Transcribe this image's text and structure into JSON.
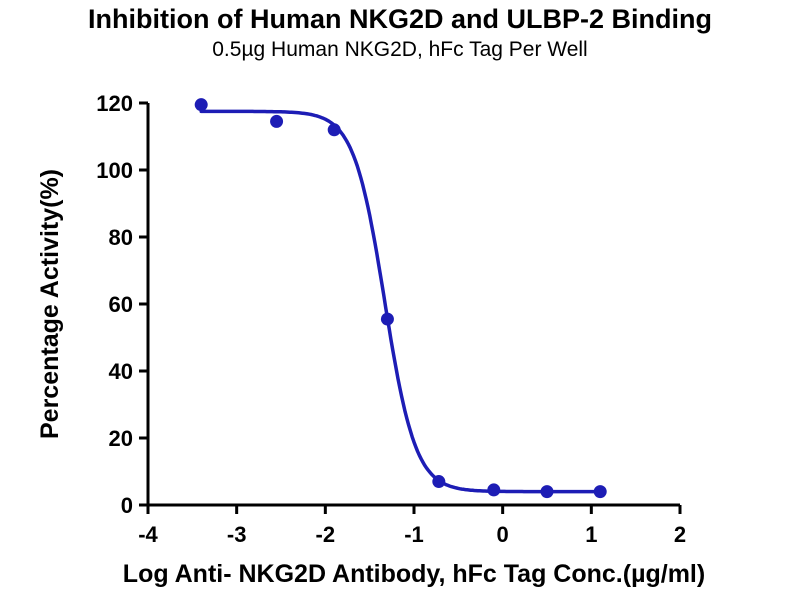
{
  "chart_data": {
    "type": "scatter",
    "title": "Inhibition of Human NKG2D and ULBP-2 Binding",
    "subtitle": "0.5µg Human NKG2D, hFc Tag Per Well",
    "xlabel": "Log Anti- NKG2D Antibody, hFc Tag Conc.(µg/ml)",
    "ylabel": "Percentage Activity(%)",
    "xlim": [
      -4,
      2
    ],
    "ylim": [
      0,
      120
    ],
    "x_ticks": [
      -4,
      -3,
      -2,
      -1,
      0,
      1,
      2
    ],
    "y_ticks": [
      0,
      20,
      40,
      60,
      80,
      100,
      120
    ],
    "grid": false,
    "legend": "none",
    "series_color": "#1d1db5",
    "axis_color": "#000000",
    "points": [
      {
        "x": -3.4,
        "y": 119.5
      },
      {
        "x": -2.55,
        "y": 114.5
      },
      {
        "x": -1.9,
        "y": 112
      },
      {
        "x": -1.3,
        "y": 55.5
      },
      {
        "x": -0.72,
        "y": 7
      },
      {
        "x": -0.1,
        "y": 4.5
      },
      {
        "x": 0.5,
        "y": 4
      },
      {
        "x": 1.1,
        "y": 4
      }
    ],
    "fit_curve": {
      "model": "four-parameter-logistic",
      "top": 117.5,
      "bottom": 4,
      "log_ic50": -1.33,
      "hill_slope": 2.5,
      "x_start": -3.4,
      "x_end": 1.1
    }
  }
}
